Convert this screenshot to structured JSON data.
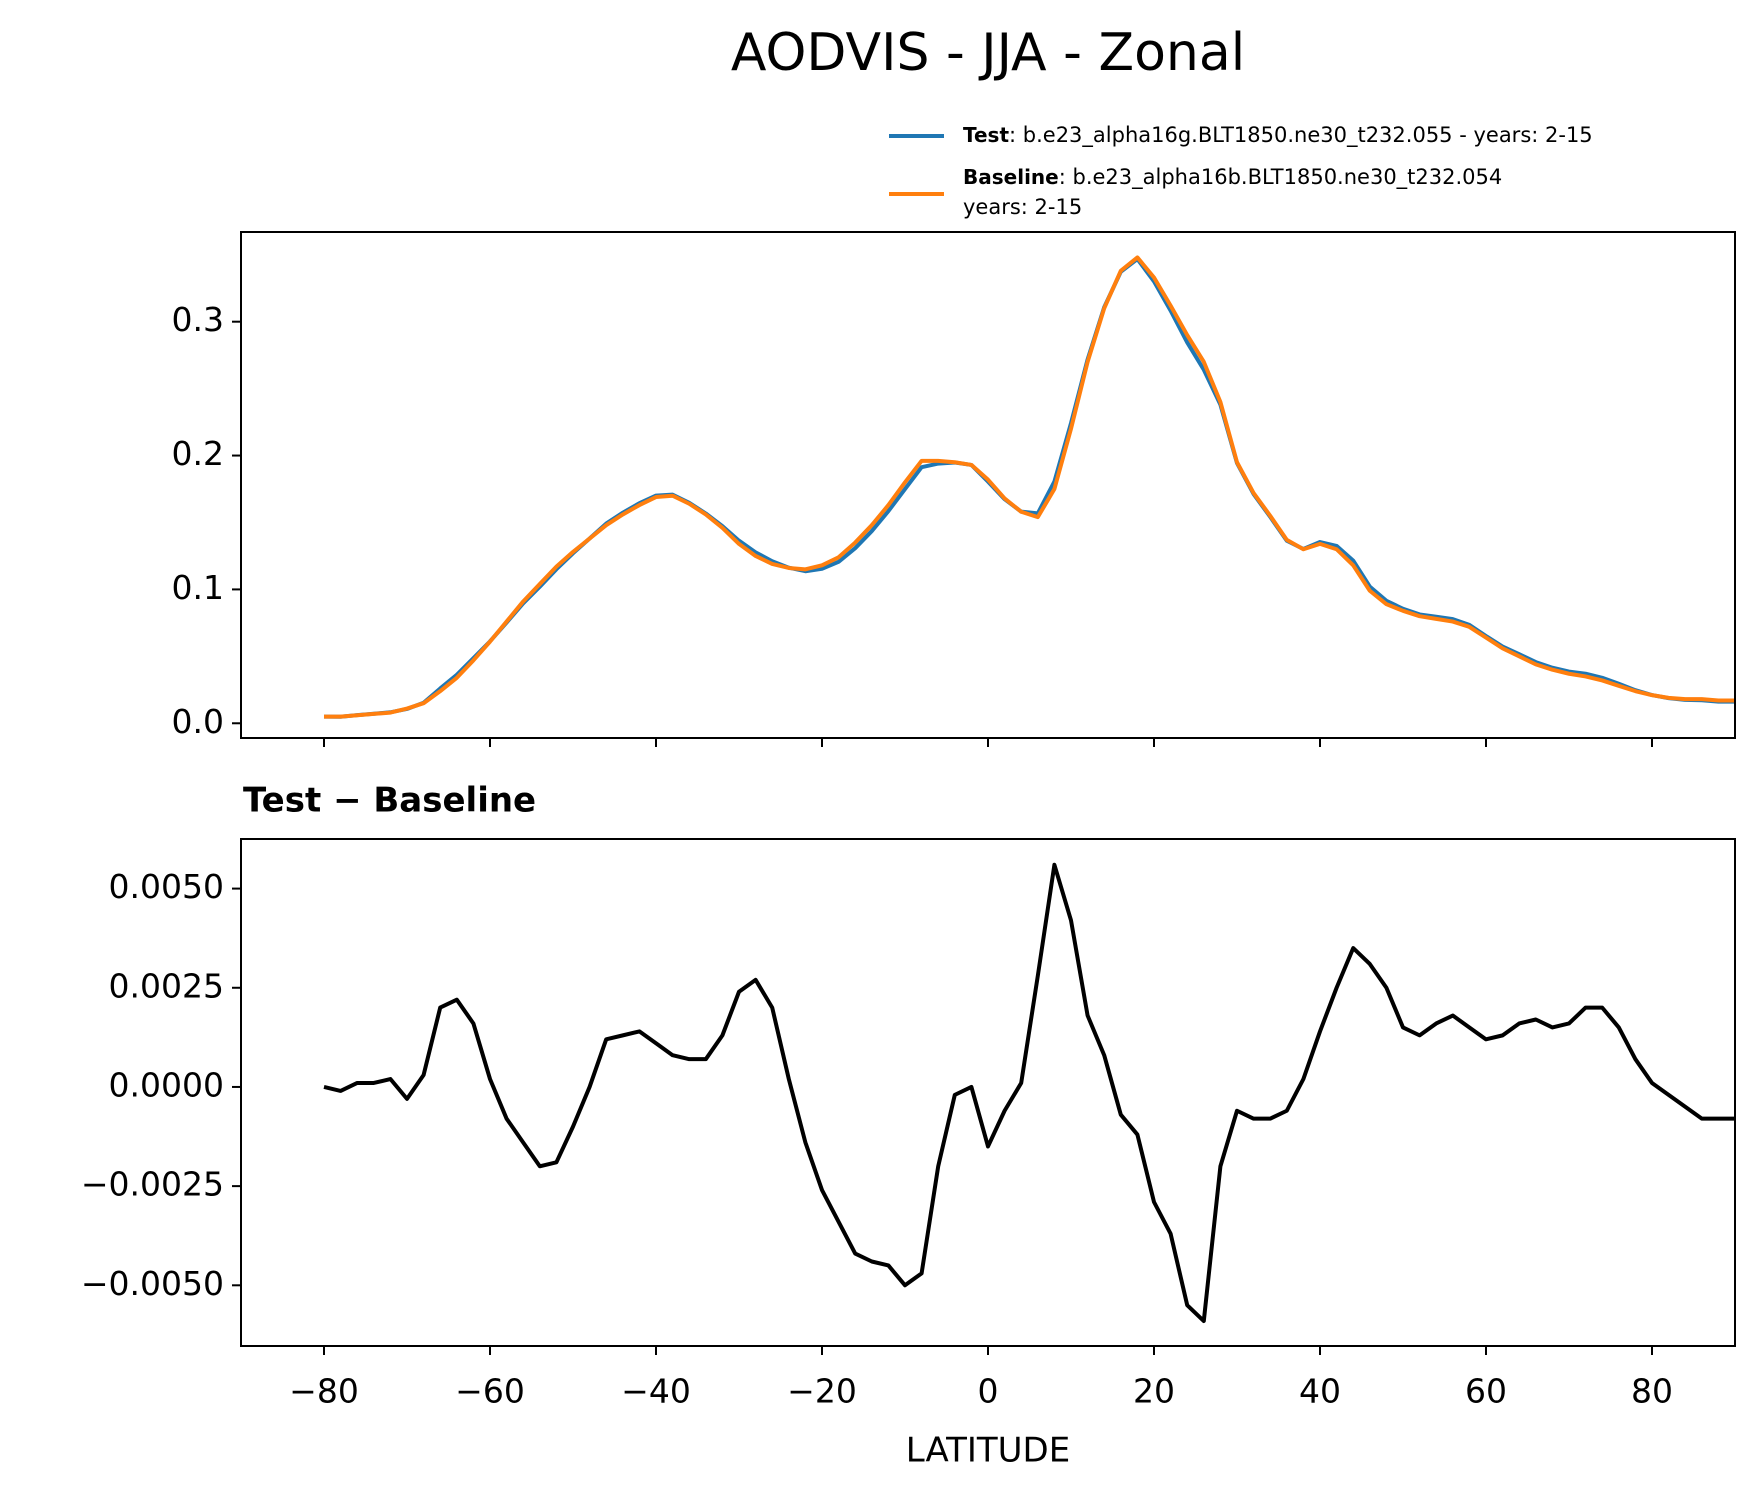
{
  "chart_data": [
    {
      "type": "line",
      "title": "AODVIS - JJA - Zonal",
      "x": [
        -80,
        -78,
        -76,
        -74,
        -72,
        -70,
        -68,
        -66,
        -64,
        -62,
        -60,
        -58,
        -56,
        -54,
        -52,
        -50,
        -48,
        -46,
        -44,
        -42,
        -40,
        -38,
        -36,
        -34,
        -32,
        -30,
        -28,
        -26,
        -24,
        -22,
        -20,
        -18,
        -16,
        -14,
        -12,
        -10,
        -8,
        -6,
        -4,
        -2,
        0,
        2,
        4,
        6,
        8,
        10,
        12,
        14,
        16,
        18,
        20,
        22,
        24,
        26,
        28,
        30,
        32,
        34,
        36,
        38,
        40,
        42,
        44,
        46,
        48,
        50,
        52,
        54,
        56,
        58,
        60,
        62,
        64,
        66,
        68,
        70,
        72,
        74,
        76,
        78,
        80,
        82,
        84,
        86,
        88,
        90
      ],
      "series": [
        {
          "name": "Test",
          "description": [
            ": b.e23_alpha16g.BLT1850.ne30_t232.055 - years: 2-15"
          ],
          "color": "#1f77b4",
          "values": [
            0.005,
            0.0049,
            0.0061,
            0.0071,
            0.0082,
            0.0107,
            0.0153,
            0.026,
            0.0362,
            0.0486,
            0.0612,
            0.0752,
            0.0896,
            0.102,
            0.1151,
            0.127,
            0.138,
            0.1492,
            0.1573,
            0.1644,
            0.1701,
            0.1708,
            0.1647,
            0.1567,
            0.1473,
            0.1364,
            0.1277,
            0.121,
            0.1162,
            0.1136,
            0.1154,
            0.1206,
            0.1308,
            0.1436,
            0.1585,
            0.175,
            0.1913,
            0.194,
            0.1948,
            0.193,
            0.1805,
            0.1674,
            0.1581,
            0.1568,
            0.1806,
            0.2242,
            0.2718,
            0.3108,
            0.3373,
            0.3468,
            0.3301,
            0.3083,
            0.2845,
            0.2641,
            0.238,
            0.1944,
            0.1712,
            0.1542,
            0.1364,
            0.1302,
            0.1354,
            0.1325,
            0.1215,
            0.1021,
            0.0915,
            0.0855,
            0.0813,
            0.0796,
            0.0778,
            0.0735,
            0.0652,
            0.0573,
            0.0516,
            0.0457,
            0.0415,
            0.0386,
            0.037,
            0.034,
            0.0295,
            0.0247,
            0.0211,
            0.0188,
            0.0175,
            0.0172,
            0.0162,
            0.0162
          ]
        },
        {
          "name": "Baseline",
          "description": [
            ": b.e23_alpha16b.BLT1850.ne30_t232.054",
            "years: 2-15"
          ],
          "color": "#ff7f0e",
          "values": [
            0.005,
            0.005,
            0.006,
            0.007,
            0.008,
            0.011,
            0.015,
            0.024,
            0.034,
            0.047,
            0.061,
            0.076,
            0.091,
            0.104,
            0.117,
            0.128,
            0.138,
            0.148,
            0.156,
            0.163,
            0.169,
            0.17,
            0.164,
            0.156,
            0.146,
            0.134,
            0.125,
            0.119,
            0.116,
            0.115,
            0.118,
            0.124,
            0.135,
            0.148,
            0.163,
            0.18,
            0.196,
            0.196,
            0.195,
            0.193,
            0.182,
            0.168,
            0.158,
            0.154,
            0.175,
            0.22,
            0.27,
            0.31,
            0.338,
            0.348,
            0.333,
            0.312,
            0.29,
            0.27,
            0.24,
            0.195,
            0.172,
            0.155,
            0.137,
            0.13,
            0.134,
            0.13,
            0.118,
            0.099,
            0.089,
            0.084,
            0.08,
            0.078,
            0.076,
            0.072,
            0.064,
            0.056,
            0.05,
            0.044,
            0.04,
            0.037,
            0.035,
            0.032,
            0.028,
            0.024,
            0.021,
            0.019,
            0.018,
            0.018,
            0.017,
            0.017
          ]
        }
      ],
      "xlim": [
        -90,
        90
      ],
      "xticks": [
        -80,
        -60,
        -40,
        -20,
        0,
        20,
        40,
        60,
        80
      ],
      "show_xtick_labels": false,
      "ylim": [
        -0.011,
        0.367
      ],
      "yticks": [
        {
          "value": 0,
          "label": "0.0"
        },
        0.1,
        0.2,
        0.3
      ]
    },
    {
      "type": "line",
      "title": "Test − Baseline",
      "xlabel": "LATITUDE",
      "x": [
        -80,
        -78,
        -76,
        -74,
        -72,
        -70,
        -68,
        -66,
        -64,
        -62,
        -60,
        -58,
        -56,
        -54,
        -52,
        -50,
        -48,
        -46,
        -44,
        -42,
        -40,
        -38,
        -36,
        -34,
        -32,
        -30,
        -28,
        -26,
        -24,
        -22,
        -20,
        -18,
        -16,
        -14,
        -12,
        -10,
        -8,
        -6,
        -4,
        -2,
        0,
        2,
        4,
        6,
        8,
        10,
        12,
        14,
        16,
        18,
        20,
        22,
        24,
        26,
        28,
        30,
        32,
        34,
        36,
        38,
        40,
        42,
        44,
        46,
        48,
        50,
        52,
        54,
        56,
        58,
        60,
        62,
        64,
        66,
        68,
        70,
        72,
        74,
        76,
        78,
        80,
        82,
        84,
        86,
        88,
        90
      ],
      "color": "#000000",
      "values": [
        0.0,
        -0.0001,
        0.0001,
        0.0001,
        0.0002,
        -0.0003,
        0.0003,
        0.002,
        0.0022,
        0.0016,
        0.0002,
        -0.0008,
        -0.0014,
        -0.002,
        -0.0019,
        -0.001,
        0.0,
        0.0012,
        0.0013,
        0.0014,
        0.0011,
        0.0008,
        0.0007,
        0.0007,
        0.0013,
        0.0024,
        0.0027,
        0.002,
        0.0002,
        -0.0014,
        -0.0026,
        -0.0034,
        -0.0042,
        -0.0044,
        -0.0045,
        -0.005,
        -0.0047,
        -0.002,
        -0.0002,
        0.0,
        -0.0015,
        -0.0006,
        0.0001,
        0.0028,
        0.0056,
        0.0042,
        0.0018,
        0.0008,
        -0.0007,
        -0.0012,
        -0.0029,
        -0.0037,
        -0.0055,
        -0.0059,
        -0.002,
        -0.0006,
        -0.0008,
        -0.0008,
        -0.0006,
        0.0002,
        0.0014,
        0.0025,
        0.0035,
        0.0031,
        0.0025,
        0.0015,
        0.0013,
        0.0016,
        0.0018,
        0.0015,
        0.0012,
        0.0013,
        0.0016,
        0.0017,
        0.0015,
        0.0016,
        0.002,
        0.002,
        0.0015,
        0.0007,
        0.0001,
        -0.0002,
        -0.0005,
        -0.0008,
        -0.0008,
        -0.0008
      ],
      "xlim": [
        -90,
        90
      ],
      "xticks": [
        {
          "value": -80,
          "label": "−80"
        },
        {
          "value": -60,
          "label": "−60"
        },
        {
          "value": -40,
          "label": "−40"
        },
        {
          "value": -20,
          "label": "−20"
        },
        0,
        20,
        40,
        60,
        80
      ],
      "ylim": [
        -0.00653,
        0.00625
      ],
      "yticks": [
        {
          "value": -0.005,
          "label": "−0.0050"
        },
        {
          "value": -0.0025,
          "label": "−0.0025"
        },
        {
          "value": 0,
          "label": "0.0000"
        },
        {
          "value": 0.0025,
          "label": "0.0025"
        },
        {
          "value": 0.005,
          "label": "0.0050"
        }
      ]
    }
  ]
}
